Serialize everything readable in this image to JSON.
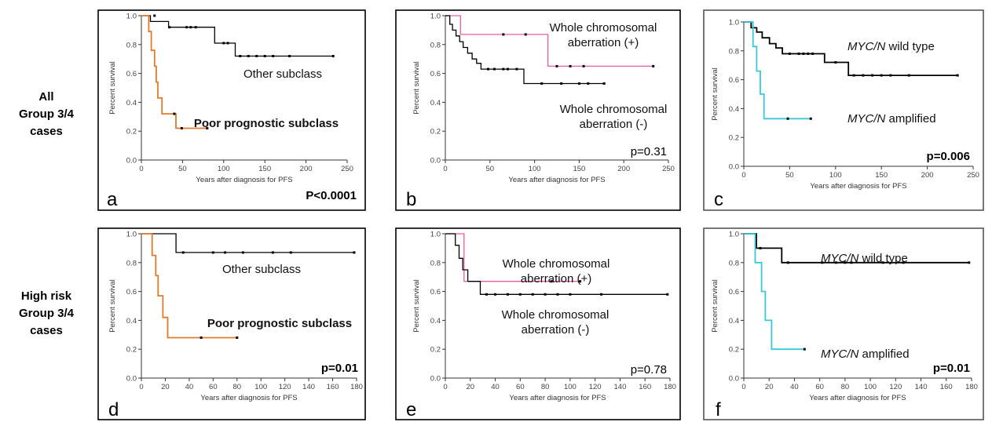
{
  "row_labels": [
    {
      "lines": [
        "All",
        "Group 3/4",
        "cases"
      ]
    },
    {
      "lines": [
        "High risk",
        "Group 3/4",
        "cases"
      ]
    }
  ],
  "chart_data": [
    {
      "type": "line",
      "letter": "a",
      "xlabel": "Years after diagnosis for PFS",
      "ylabel": "Percent survival",
      "xlim": [
        0,
        250
      ],
      "xticks": [
        0,
        50,
        100,
        150,
        200,
        250
      ],
      "ylim": [
        0,
        1
      ],
      "yticks": [
        0.0,
        0.2,
        0.4,
        0.6,
        0.8,
        1.0
      ],
      "p_value": "P<0.0001",
      "p_bold": true,
      "series": [
        {
          "name": "Other subclass",
          "color": "#000000",
          "bold": false,
          "steps": [
            [
              0,
              1.0
            ],
            [
              11,
              1.0
            ],
            [
              11,
              0.96
            ],
            [
              33,
              0.96
            ],
            [
              33,
              0.92
            ],
            [
              89,
              0.92
            ],
            [
              89,
              0.81
            ],
            [
              114,
              0.81
            ],
            [
              114,
              0.72
            ],
            [
              233,
              0.72
            ]
          ],
          "censors": [
            [
              16,
              1.0
            ],
            [
              34,
              0.92
            ],
            [
              55,
              0.92
            ],
            [
              60,
              0.92
            ],
            [
              66,
              0.92
            ],
            [
              100,
              0.81
            ],
            [
              105,
              0.81
            ],
            [
              120,
              0.72
            ],
            [
              130,
              0.72
            ],
            [
              140,
              0.72
            ],
            [
              150,
              0.72
            ],
            [
              160,
              0.72
            ],
            [
              180,
              0.72
            ],
            [
              233,
              0.72
            ]
          ]
        },
        {
          "name": "Poor prognostic subclass",
          "color": "#e07b2c",
          "bold": true,
          "steps": [
            [
              0,
              1.0
            ],
            [
              9,
              1.0
            ],
            [
              9,
              0.89
            ],
            [
              12,
              0.89
            ],
            [
              12,
              0.76
            ],
            [
              16,
              0.76
            ],
            [
              16,
              0.65
            ],
            [
              18,
              0.65
            ],
            [
              18,
              0.54
            ],
            [
              20,
              0.54
            ],
            [
              20,
              0.43
            ],
            [
              25,
              0.43
            ],
            [
              25,
              0.32
            ],
            [
              42,
              0.32
            ],
            [
              42,
              0.22
            ],
            [
              80,
              0.22
            ]
          ],
          "censors": [
            [
              40,
              0.32
            ],
            [
              49,
              0.22
            ],
            [
              80,
              0.22
            ]
          ]
        }
      ]
    },
    {
      "type": "line",
      "letter": "b",
      "xlabel": "Years after diagnosis for PFS",
      "ylabel": "Percent survival",
      "xlim": [
        0,
        250
      ],
      "xticks": [
        0,
        50,
        100,
        150,
        200,
        250
      ],
      "ylim": [
        0,
        1
      ],
      "yticks": [
        0.0,
        0.2,
        0.4,
        0.6,
        0.8,
        1.0
      ],
      "p_value": "p=0.31",
      "p_bold": false,
      "series": [
        {
          "name": "Whole chromosomal aberration (+)",
          "color": "#e55fa6",
          "bold": false,
          "steps": [
            [
              0,
              1.0
            ],
            [
              17,
              1.0
            ],
            [
              17,
              0.87
            ],
            [
              115,
              0.87
            ],
            [
              115,
              0.65
            ],
            [
              233,
              0.65
            ]
          ],
          "censors": [
            [
              65,
              0.87
            ],
            [
              90,
              0.87
            ],
            [
              125,
              0.65
            ],
            [
              140,
              0.65
            ],
            [
              155,
              0.65
            ],
            [
              233,
              0.65
            ]
          ]
        },
        {
          "name": "Whole chromosomal aberration (-)",
          "color": "#000000",
          "bold": false,
          "steps": [
            [
              0,
              1.0
            ],
            [
              5,
              1.0
            ],
            [
              5,
              0.94
            ],
            [
              8,
              0.94
            ],
            [
              8,
              0.9
            ],
            [
              12,
              0.9
            ],
            [
              12,
              0.86
            ],
            [
              16,
              0.86
            ],
            [
              16,
              0.82
            ],
            [
              20,
              0.82
            ],
            [
              20,
              0.78
            ],
            [
              25,
              0.78
            ],
            [
              25,
              0.74
            ],
            [
              30,
              0.74
            ],
            [
              30,
              0.7
            ],
            [
              35,
              0.7
            ],
            [
              35,
              0.67
            ],
            [
              40,
              0.67
            ],
            [
              40,
              0.63
            ],
            [
              88,
              0.63
            ],
            [
              88,
              0.53
            ],
            [
              178,
              0.53
            ]
          ],
          "censors": [
            [
              48,
              0.63
            ],
            [
              55,
              0.63
            ],
            [
              65,
              0.63
            ],
            [
              70,
              0.63
            ],
            [
              80,
              0.63
            ],
            [
              108,
              0.53
            ],
            [
              130,
              0.53
            ],
            [
              150,
              0.53
            ],
            [
              160,
              0.53
            ],
            [
              178,
              0.53
            ]
          ]
        }
      ]
    },
    {
      "type": "line",
      "letter": "c",
      "xlabel": "Years after diagnosis for PFS",
      "ylabel": "Percent survival",
      "xlim": [
        0,
        250
      ],
      "xticks": [
        0,
        50,
        100,
        150,
        200,
        250
      ],
      "ylim": [
        0,
        1
      ],
      "yticks": [
        0.0,
        0.2,
        0.4,
        0.6,
        0.8,
        1.0
      ],
      "p_value": "p=0.006",
      "p_bold": true,
      "series": [
        {
          "name": "MYC/N wild type",
          "color": "#000000",
          "bold": true,
          "steps": [
            [
              0,
              1.0
            ],
            [
              8,
              1.0
            ],
            [
              8,
              0.96
            ],
            [
              14,
              0.96
            ],
            [
              14,
              0.93
            ],
            [
              20,
              0.93
            ],
            [
              20,
              0.89
            ],
            [
              28,
              0.89
            ],
            [
              28,
              0.85
            ],
            [
              35,
              0.85
            ],
            [
              35,
              0.82
            ],
            [
              42,
              0.82
            ],
            [
              42,
              0.78
            ],
            [
              88,
              0.78
            ],
            [
              88,
              0.72
            ],
            [
              114,
              0.72
            ],
            [
              114,
              0.63
            ],
            [
              233,
              0.63
            ]
          ],
          "censors": [
            [
              50,
              0.78
            ],
            [
              60,
              0.78
            ],
            [
              65,
              0.78
            ],
            [
              70,
              0.78
            ],
            [
              75,
              0.78
            ],
            [
              100,
              0.72
            ],
            [
              120,
              0.63
            ],
            [
              130,
              0.63
            ],
            [
              140,
              0.63
            ],
            [
              150,
              0.63
            ],
            [
              160,
              0.63
            ],
            [
              180,
              0.63
            ],
            [
              233,
              0.63
            ]
          ]
        },
        {
          "name": "MYC/N amplified",
          "color": "#39c8d6",
          "bold": true,
          "steps": [
            [
              0,
              1.0
            ],
            [
              10,
              1.0
            ],
            [
              10,
              0.83
            ],
            [
              14,
              0.83
            ],
            [
              14,
              0.66
            ],
            [
              18,
              0.66
            ],
            [
              18,
              0.5
            ],
            [
              22,
              0.5
            ],
            [
              22,
              0.33
            ],
            [
              73,
              0.33
            ]
          ],
          "censors": [
            [
              48,
              0.33
            ],
            [
              73,
              0.33
            ]
          ]
        }
      ]
    },
    {
      "type": "line",
      "letter": "d",
      "xlabel": "Years after diagnosis for PFS",
      "ylabel": "Percent survival",
      "xlim": [
        0,
        180
      ],
      "xticks": [
        0,
        20,
        40,
        60,
        80,
        100,
        120,
        140,
        160,
        180
      ],
      "ylim": [
        0,
        1
      ],
      "yticks": [
        0.0,
        0.2,
        0.4,
        0.6,
        0.8,
        1.0
      ],
      "p_value": "p=0.01",
      "p_bold": true,
      "series": [
        {
          "name": "Other subclass",
          "color": "#000000",
          "bold": false,
          "steps": [
            [
              0,
              1.0
            ],
            [
              29,
              1.0
            ],
            [
              29,
              0.87
            ],
            [
              178,
              0.87
            ]
          ],
          "censors": [
            [
              35,
              0.87
            ],
            [
              60,
              0.87
            ],
            [
              70,
              0.87
            ],
            [
              85,
              0.87
            ],
            [
              110,
              0.87
            ],
            [
              125,
              0.87
            ],
            [
              178,
              0.87
            ]
          ]
        },
        {
          "name": "Poor prognostic subclass",
          "color": "#e07b2c",
          "bold": true,
          "steps": [
            [
              0,
              1.0
            ],
            [
              9,
              1.0
            ],
            [
              9,
              0.85
            ],
            [
              12,
              0.85
            ],
            [
              12,
              0.71
            ],
            [
              14,
              0.71
            ],
            [
              14,
              0.57
            ],
            [
              18,
              0.57
            ],
            [
              18,
              0.42
            ],
            [
              22,
              0.42
            ],
            [
              22,
              0.28
            ],
            [
              80,
              0.28
            ]
          ],
          "censors": [
            [
              50,
              0.28
            ],
            [
              80,
              0.28
            ]
          ]
        }
      ]
    },
    {
      "type": "line",
      "letter": "e",
      "xlabel": "Years after diagnosis for PFS",
      "ylabel": "Percent survival",
      "xlim": [
        0,
        180
      ],
      "xticks": [
        0,
        20,
        40,
        60,
        80,
        100,
        120,
        140,
        160,
        180
      ],
      "ylim": [
        0,
        1
      ],
      "yticks": [
        0.0,
        0.2,
        0.4,
        0.6,
        0.8,
        1.0
      ],
      "p_value": "p=0.78",
      "p_bold": false,
      "series": [
        {
          "name": "Whole chromosomal aberration (+)",
          "color": "#e55fa6",
          "bold": false,
          "steps": [
            [
              0,
              1.0
            ],
            [
              15,
              1.0
            ],
            [
              15,
              0.67
            ],
            [
              108,
              0.67
            ]
          ],
          "censors": [
            [
              85,
              0.67
            ],
            [
              108,
              0.67
            ]
          ]
        },
        {
          "name": "Whole chromosomal aberration (-)",
          "color": "#000000",
          "bold": false,
          "steps": [
            [
              0,
              1.0
            ],
            [
              8,
              1.0
            ],
            [
              8,
              0.92
            ],
            [
              11,
              0.92
            ],
            [
              11,
              0.83
            ],
            [
              14,
              0.83
            ],
            [
              14,
              0.75
            ],
            [
              18,
              0.75
            ],
            [
              18,
              0.67
            ],
            [
              28,
              0.67
            ],
            [
              28,
              0.58
            ],
            [
              178,
              0.58
            ]
          ],
          "censors": [
            [
              33,
              0.58
            ],
            [
              40,
              0.58
            ],
            [
              50,
              0.58
            ],
            [
              60,
              0.58
            ],
            [
              70,
              0.58
            ],
            [
              80,
              0.58
            ],
            [
              90,
              0.58
            ],
            [
              100,
              0.58
            ],
            [
              125,
              0.58
            ],
            [
              178,
              0.58
            ]
          ]
        }
      ]
    },
    {
      "type": "line",
      "letter": "f",
      "xlabel": "Years after diagnosis for PFS",
      "ylabel": "Percent survival",
      "xlim": [
        0,
        180
      ],
      "xticks": [
        0,
        20,
        40,
        60,
        80,
        100,
        120,
        140,
        160,
        180
      ],
      "ylim": [
        0,
        1
      ],
      "yticks": [
        0.0,
        0.2,
        0.4,
        0.6,
        0.8,
        1.0
      ],
      "p_value": "p=0.01",
      "p_bold": true,
      "series": [
        {
          "name": "MYC/N wild type",
          "color": "#000000",
          "bold": true,
          "steps": [
            [
              0,
              1.0
            ],
            [
              10,
              1.0
            ],
            [
              10,
              0.9
            ],
            [
              30,
              0.9
            ],
            [
              30,
              0.8
            ],
            [
              178,
              0.8
            ]
          ],
          "censors": [
            [
              13,
              0.9
            ],
            [
              35,
              0.8
            ],
            [
              62,
              0.8
            ],
            [
              73,
              0.8
            ],
            [
              80,
              0.8
            ],
            [
              85,
              0.8
            ],
            [
              110,
              0.8
            ],
            [
              126,
              0.8
            ],
            [
              178,
              0.8
            ]
          ]
        },
        {
          "name": "MYC/N amplified",
          "color": "#39c8d6",
          "bold": true,
          "steps": [
            [
              0,
              1.0
            ],
            [
              9,
              1.0
            ],
            [
              9,
              0.8
            ],
            [
              14,
              0.8
            ],
            [
              14,
              0.6
            ],
            [
              17,
              0.6
            ],
            [
              17,
              0.4
            ],
            [
              22,
              0.4
            ],
            [
              22,
              0.2
            ],
            [
              48,
              0.2
            ]
          ],
          "censors": [
            [
              48,
              0.2
            ]
          ]
        }
      ]
    }
  ]
}
